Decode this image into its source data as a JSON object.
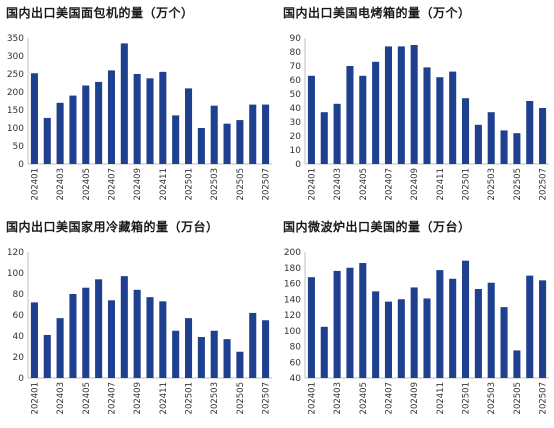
{
  "colors": {
    "bar": "#1f3f8f",
    "axis": "#bfbfbf",
    "text": "#333333"
  },
  "chart_data": [
    {
      "type": "bar",
      "title": "国内出口美国面包机的量（万个）",
      "ylim": [
        0,
        350
      ],
      "ystep": 50,
      "categories": [
        "202401",
        "202402",
        "202403",
        "202404",
        "202405",
        "202406",
        "202407",
        "202408",
        "202409",
        "202410",
        "202411",
        "202412",
        "202501",
        "202502",
        "202503",
        "202504",
        "202505",
        "202506",
        "202507"
      ],
      "tick_labels": [
        "202401",
        "202403",
        "202405",
        "202407",
        "202409",
        "202411",
        "202501",
        "202503",
        "202505",
        "202507"
      ],
      "values": [
        252,
        128,
        170,
        190,
        218,
        228,
        260,
        335,
        250,
        238,
        256,
        135,
        210,
        100,
        162,
        112,
        122,
        165,
        165
      ]
    },
    {
      "type": "bar",
      "title": "国内出口美国电烤箱的量（万个）",
      "ylim": [
        0,
        90
      ],
      "ystep": 10,
      "categories": [
        "202401",
        "202402",
        "202403",
        "202404",
        "202405",
        "202406",
        "202407",
        "202408",
        "202409",
        "202410",
        "202411",
        "202412",
        "202501",
        "202502",
        "202503",
        "202504",
        "202505",
        "202506",
        "202507"
      ],
      "tick_labels": [
        "202401",
        "202403",
        "202405",
        "202407",
        "202409",
        "202411",
        "202501",
        "202503",
        "202505",
        "202507"
      ],
      "values": [
        63,
        37,
        43,
        70,
        63,
        73,
        84,
        84,
        85,
        69,
        62,
        66,
        47,
        28,
        37,
        24,
        22,
        45,
        40
      ]
    },
    {
      "type": "bar",
      "title": "国内出口美国家用冷藏箱的量（万台）",
      "ylim": [
        0,
        120
      ],
      "ystep": 20,
      "categories": [
        "202401",
        "202402",
        "202403",
        "202404",
        "202405",
        "202406",
        "202407",
        "202408",
        "202409",
        "202410",
        "202411",
        "202412",
        "202501",
        "202502",
        "202503",
        "202504",
        "202505",
        "202506",
        "202507"
      ],
      "tick_labels": [
        "202401",
        "202403",
        "202405",
        "202407",
        "202409",
        "202411",
        "202501",
        "202503",
        "202505",
        "202507"
      ],
      "values": [
        72,
        41,
        57,
        80,
        86,
        94,
        74,
        97,
        84,
        77,
        73,
        45,
        57,
        39,
        45,
        37,
        25,
        62,
        55
      ]
    },
    {
      "type": "bar",
      "title": "国内微波炉出口美国的量（万台）",
      "ylim": [
        40,
        200
      ],
      "ystep": 20,
      "categories": [
        "202401",
        "202402",
        "202403",
        "202404",
        "202405",
        "202406",
        "202407",
        "202408",
        "202409",
        "202410",
        "202411",
        "202412",
        "202501",
        "202502",
        "202503",
        "202504",
        "202505",
        "202506",
        "202507"
      ],
      "tick_labels": [
        "202401",
        "202403",
        "202405",
        "202407",
        "202409",
        "202411",
        "202501",
        "202503",
        "202505",
        "202507"
      ],
      "values": [
        168,
        105,
        176,
        180,
        186,
        150,
        137,
        140,
        155,
        141,
        177,
        166,
        189,
        153,
        161,
        130,
        75,
        170,
        164
      ]
    }
  ]
}
